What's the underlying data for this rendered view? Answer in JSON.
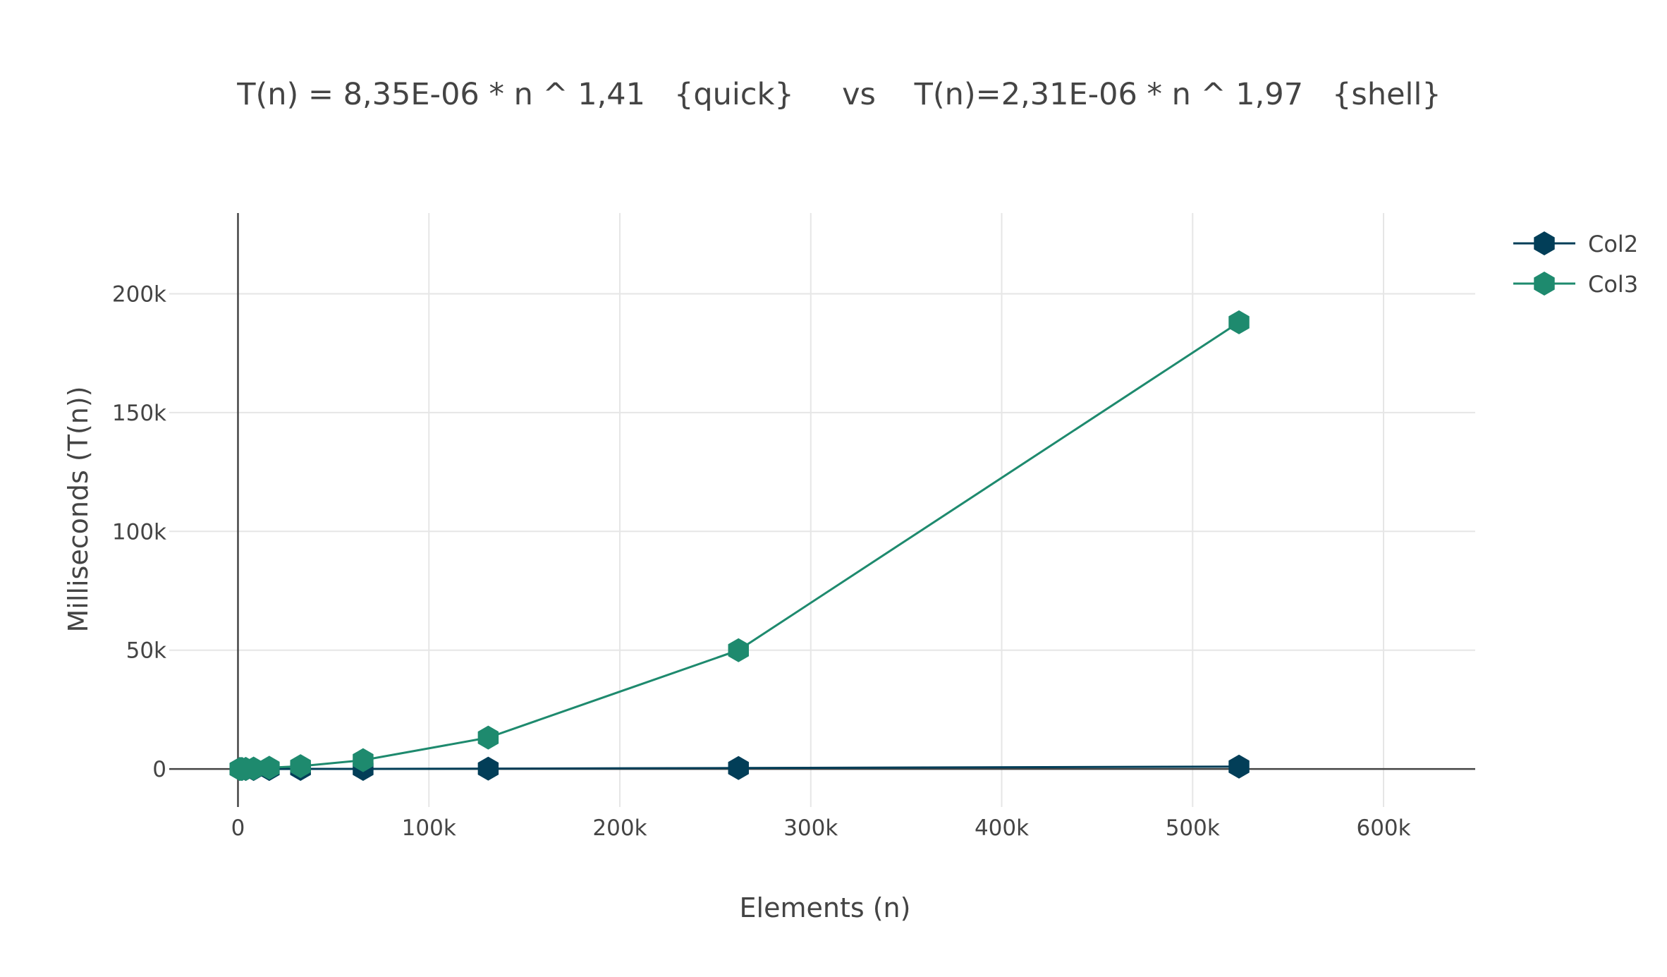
{
  "chart_data": {
    "type": "line",
    "title": "T(n) = 8,35E-06 * n ^ 1,41   {quick}     vs    T(n)=2,31E-06 * n ^ 1,97   {shell}",
    "xlabel": "Elements (n)",
    "ylabel": "Milliseconds (T(n))",
    "xlim": [
      -36000,
      648000
    ],
    "ylim": [
      -16000,
      234000
    ],
    "xticks": [
      0,
      100000,
      200000,
      300000,
      400000,
      500000,
      600000
    ],
    "xtick_labels": [
      "0",
      "100k",
      "200k",
      "300k",
      "400k",
      "500k",
      "600k"
    ],
    "yticks": [
      0,
      50000,
      100000,
      150000,
      200000
    ],
    "ytick_labels": [
      "0",
      "50k",
      "100k",
      "150k",
      "200k"
    ],
    "grid": true,
    "legend_position": "top-right",
    "marker": "hexagon",
    "x": [
      1024,
      2048,
      4096,
      8192,
      16384,
      32768,
      65536,
      131072,
      262144,
      524288
    ],
    "series": [
      {
        "name": "Col2",
        "color": "#023e58",
        "values": [
          0,
          0,
          0,
          1,
          3,
          20,
          50,
          150,
          400,
          1000
        ]
      },
      {
        "name": "Col3",
        "color": "#1e8a6e",
        "values": [
          2,
          9,
          40,
          170,
          500,
          1200,
          3700,
          13200,
          50000,
          188000
        ]
      }
    ]
  }
}
